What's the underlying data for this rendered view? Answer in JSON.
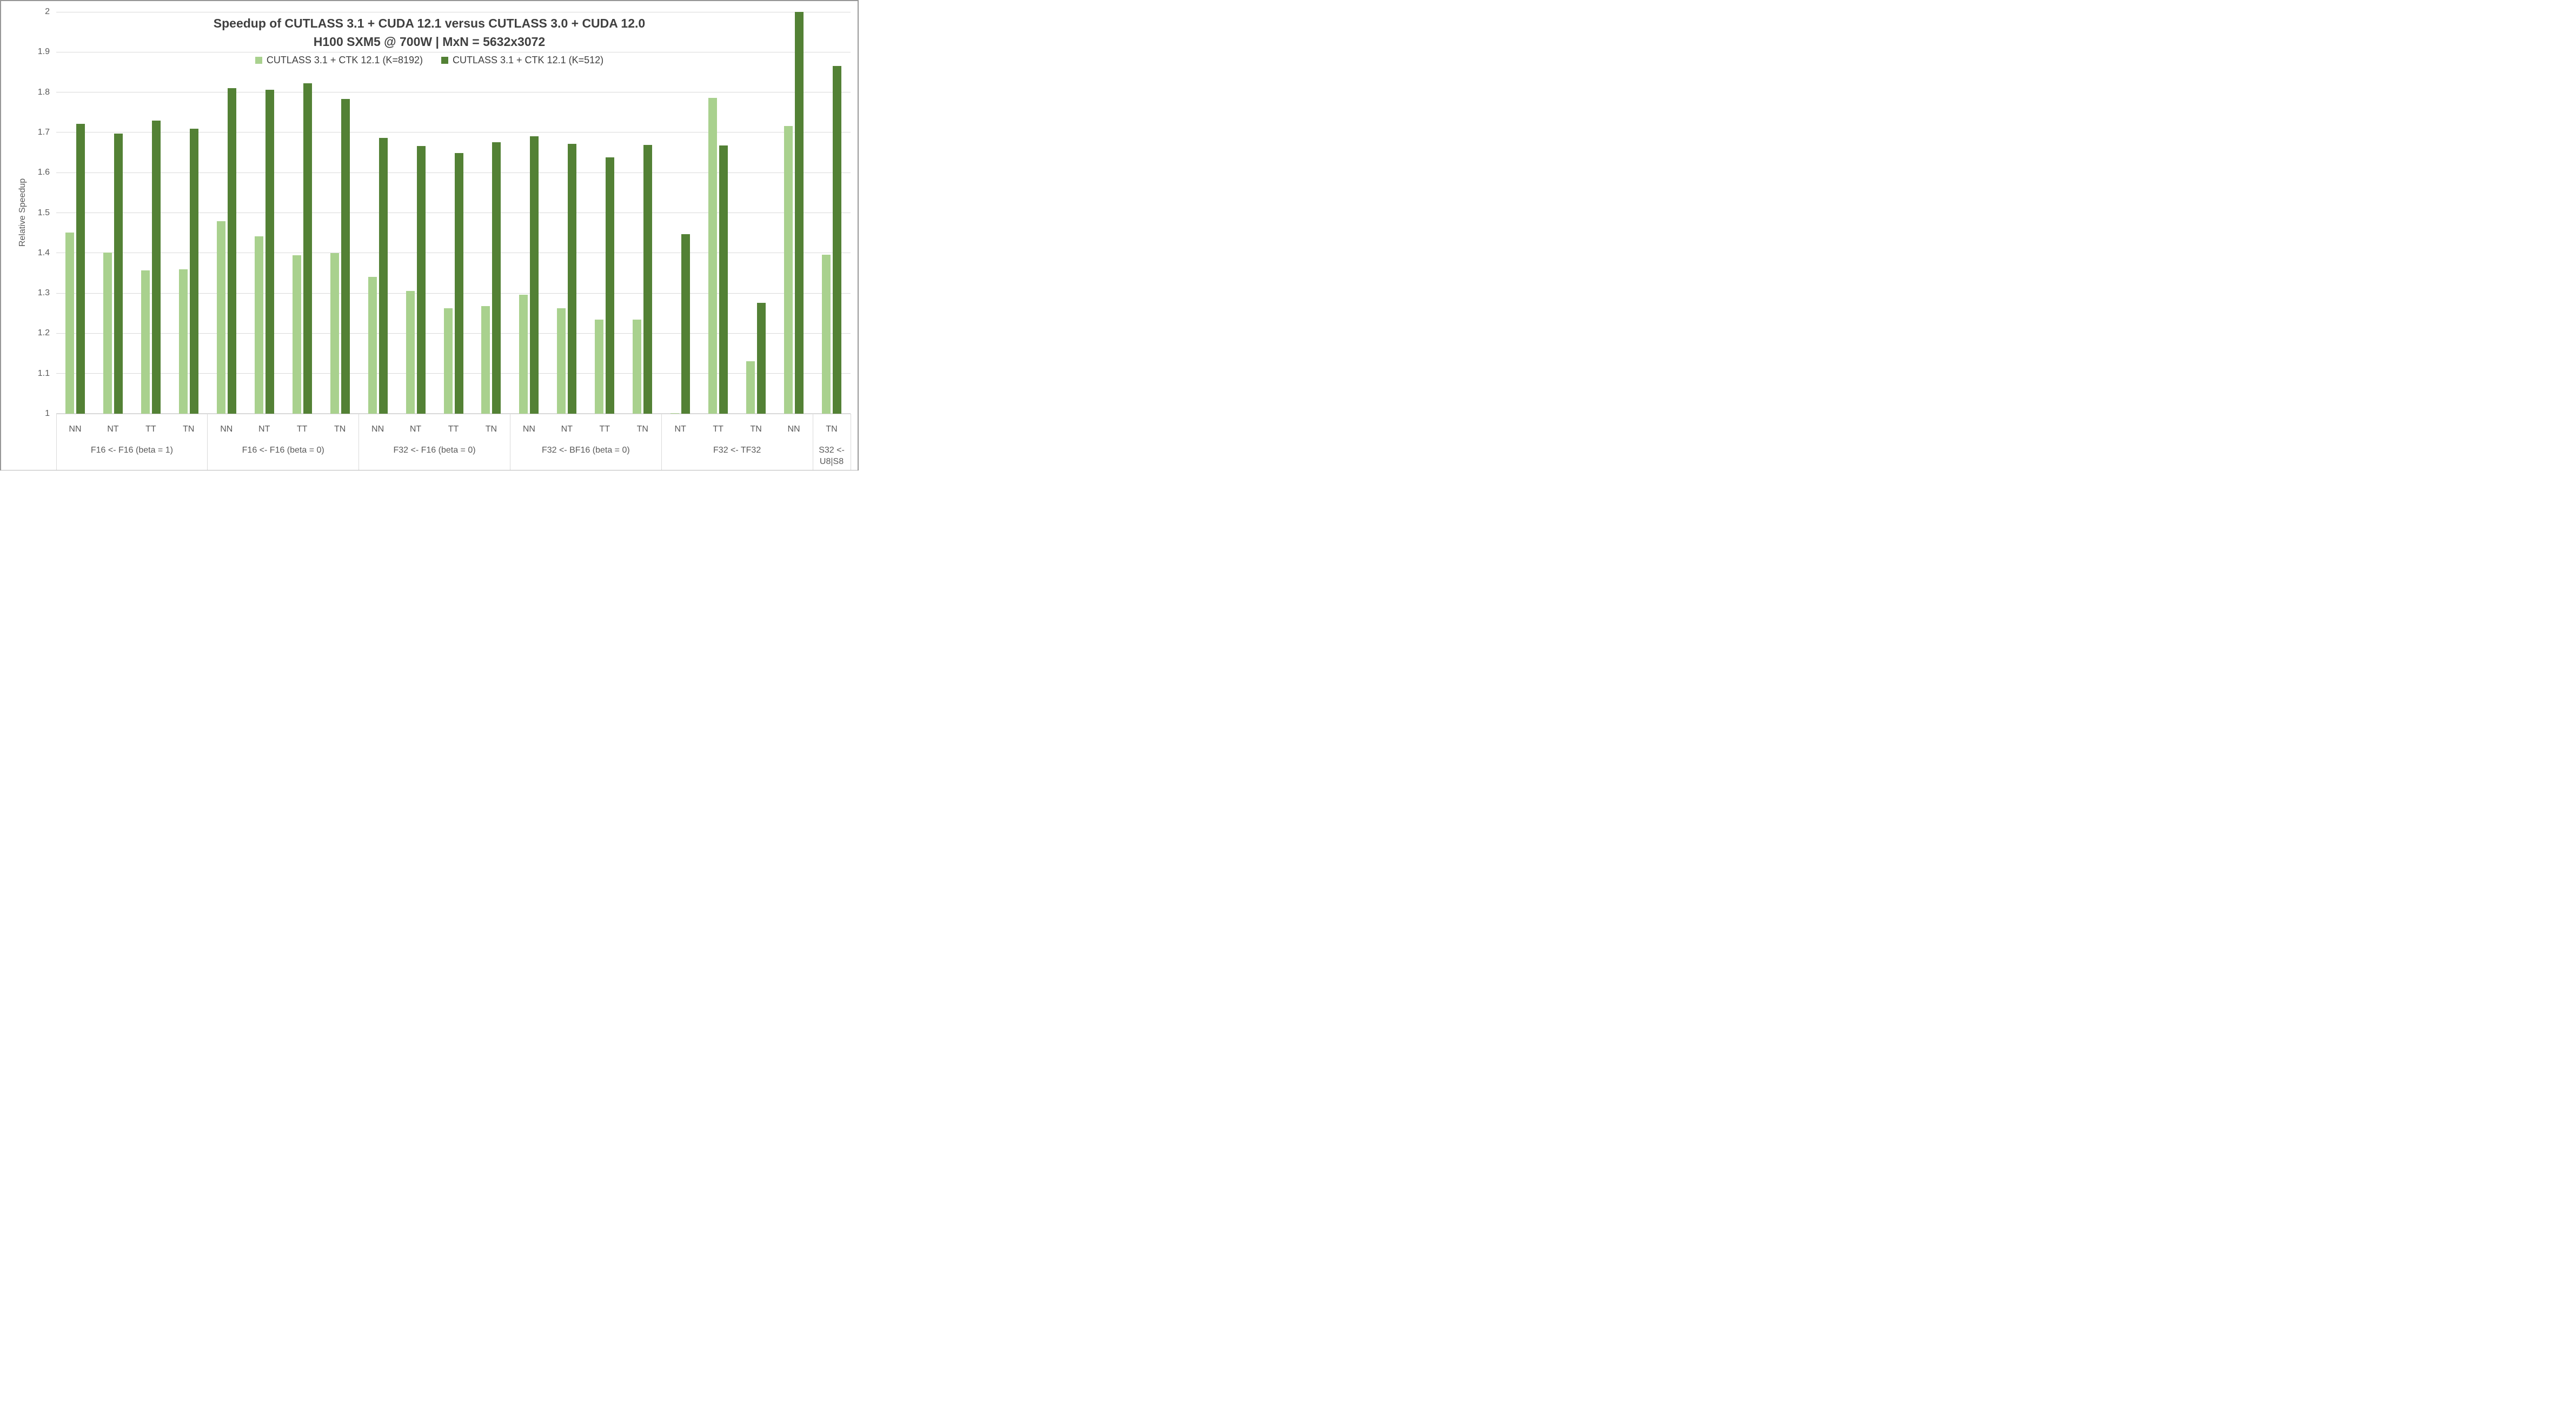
{
  "title": {
    "line1": "Speedup of CUTLASS 3.1 + CUDA 12.1 versus CUTLASS 3.0 + CUDA 12.0",
    "line2": "H100 SXM5 @ 700W | MxN = 5632x3072"
  },
  "legend": {
    "items": [
      {
        "label": "CUTLASS 3.1 + CTK 12.1 (K=8192)",
        "color": "#A9D18E"
      },
      {
        "label": "CUTLASS 3.1 + CTK 12.1 (K=512)",
        "color": "#538135"
      }
    ]
  },
  "y_axis": {
    "title": "Relative Speedup",
    "min": 1,
    "max": 2,
    "tick_values": [
      1,
      1.1,
      1.2,
      1.3,
      1.4,
      1.5,
      1.6,
      1.7,
      1.8,
      1.9,
      2
    ],
    "tick_labels": [
      "1",
      "1.1",
      "1.2",
      "1.3",
      "1.4",
      "1.5",
      "1.6",
      "1.7",
      "1.8",
      "1.9",
      "2"
    ]
  },
  "colors": {
    "bar_light": "#A9D18E",
    "bar_dark": "#538135",
    "gridline": "#D9D9D9",
    "axis_line": "#D9D9D9",
    "bottom_border": "#B7B7B7",
    "text_title": "#404040",
    "text_axis": "#595959"
  },
  "chart_data": {
    "type": "bar",
    "title": "Speedup of CUTLASS 3.1 + CUDA 12.1 versus CUTLASS 3.0 + CUDA 12.0",
    "subtitle": "H100 SXM5 @ 700W | MxN = 5632x3072",
    "xlabel": "",
    "ylabel": "Relative Speedup",
    "ylim": [
      1,
      2
    ],
    "grid": true,
    "legend_position": "top-center",
    "series": [
      {
        "name": "CUTLASS 3.1 + CTK 12.1 (K=8192)",
        "color": "#A9D18E"
      },
      {
        "name": "CUTLASS 3.1 + CTK 12.1 (K=512)",
        "color": "#538135"
      }
    ],
    "groups": [
      {
        "label": "F16 <- F16 (beta = 1)",
        "categories": [
          "NN",
          "NT",
          "TT",
          "TN"
        ],
        "values_k8192": [
          1.451,
          1.401,
          1.357,
          1.36
        ],
        "values_k512": [
          1.721,
          1.697,
          1.729,
          1.709
        ]
      },
      {
        "label": "F16 <- F16 (beta = 0)",
        "categories": [
          "NN",
          "NT",
          "TT",
          "TN"
        ],
        "values_k8192": [
          1.479,
          1.442,
          1.395,
          1.4
        ],
        "values_k512": [
          1.81,
          1.806,
          1.823,
          1.783
        ]
      },
      {
        "label": "F32 <- F16 (beta = 0)",
        "categories": [
          "NN",
          "NT",
          "TT",
          "TN"
        ],
        "values_k8192": [
          1.34,
          1.306,
          1.263,
          1.268
        ],
        "values_k512": [
          1.686,
          1.666,
          1.649,
          1.676
        ]
      },
      {
        "label": "F32 <- BF16 (beta = 0)",
        "categories": [
          "NN",
          "NT",
          "TT",
          "TN"
        ],
        "values_k8192": [
          1.296,
          1.263,
          1.234,
          1.234
        ],
        "values_k512": [
          1.69,
          1.672,
          1.638,
          1.669
        ]
      },
      {
        "label": "F32 <- TF32",
        "categories": [
          "NT",
          "TT",
          "TN",
          "NN"
        ],
        "values_k8192": [
          1.002,
          1.786,
          1.131,
          1.716
        ],
        "values_k512": [
          1.447,
          1.668,
          1.276,
          2.0
        ]
      },
      {
        "label": "S32 <- U8|S8",
        "label_lines": [
          "S32 <-",
          "U8|S8"
        ],
        "categories": [
          "TN"
        ],
        "values_k8192": [
          1.396
        ],
        "values_k512": [
          1.865
        ]
      }
    ]
  }
}
